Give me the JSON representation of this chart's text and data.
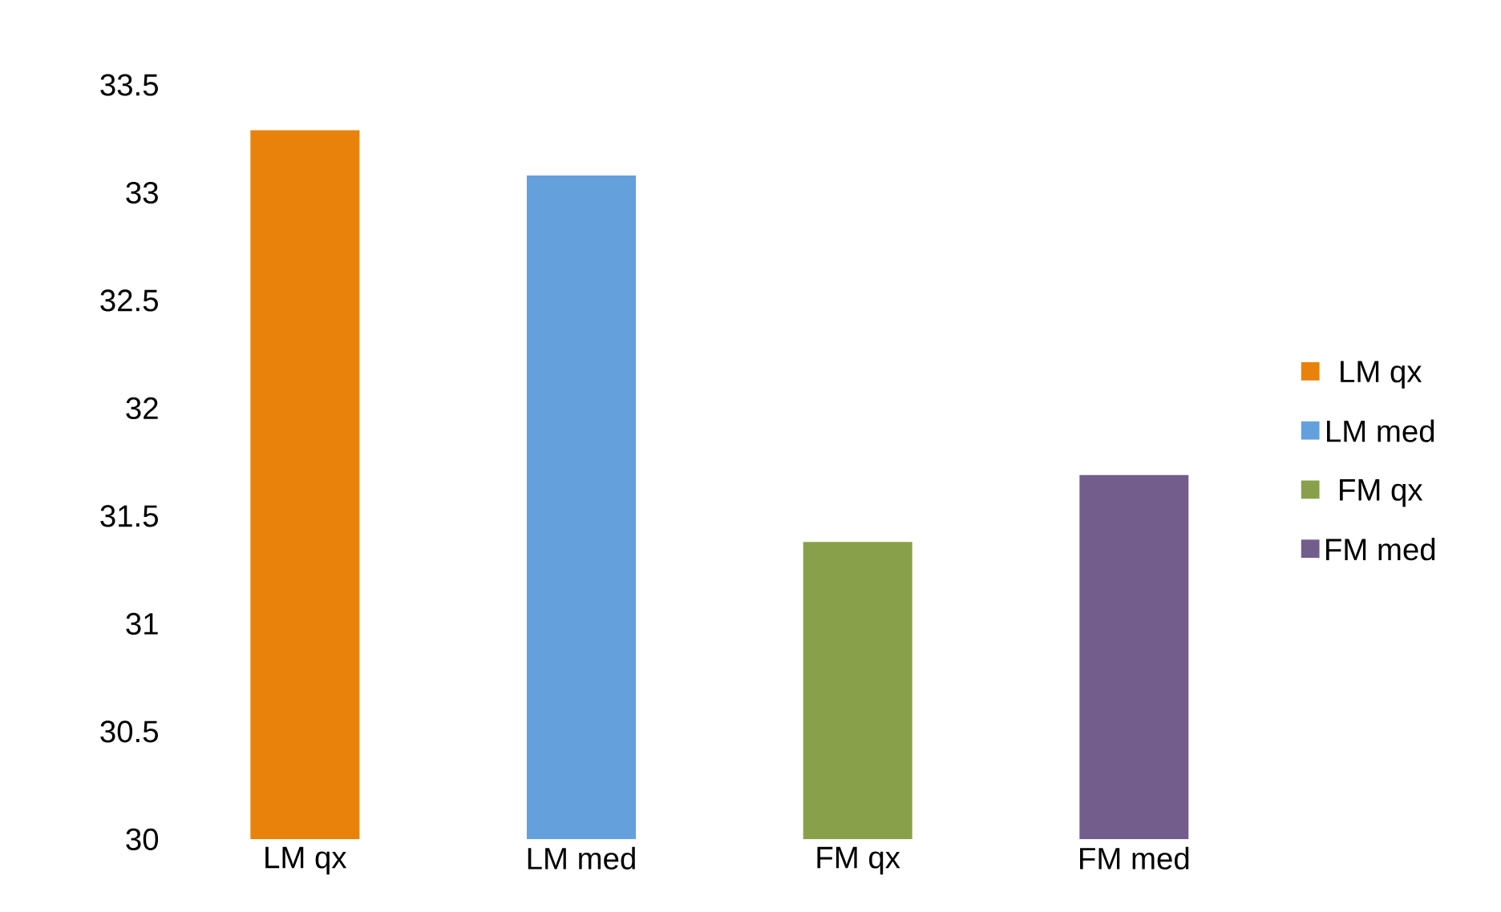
{
  "chart_data": {
    "type": "bar",
    "categories": [
      "LM qx",
      "LM med",
      "FM qx",
      "FM med"
    ],
    "series": [
      {
        "name": "LM qx",
        "color": "#e8820a",
        "values": [
          33.29,
          null,
          null,
          null
        ]
      },
      {
        "name": "LM med",
        "color": "#63a0dc",
        "values": [
          null,
          33.08,
          null,
          null
        ]
      },
      {
        "name": "FM qx",
        "color": "#89a04a",
        "values": [
          null,
          null,
          31.38,
          null
        ]
      },
      {
        "name": "FM med",
        "color": "#735d8c",
        "values": [
          null,
          null,
          null,
          31.69
        ]
      }
    ],
    "ylim": [
      30,
      33.5
    ],
    "yticks": [
      30,
      30.5,
      31,
      31.5,
      32,
      32.5,
      33,
      33.5
    ],
    "grid": false,
    "legend": "right"
  }
}
